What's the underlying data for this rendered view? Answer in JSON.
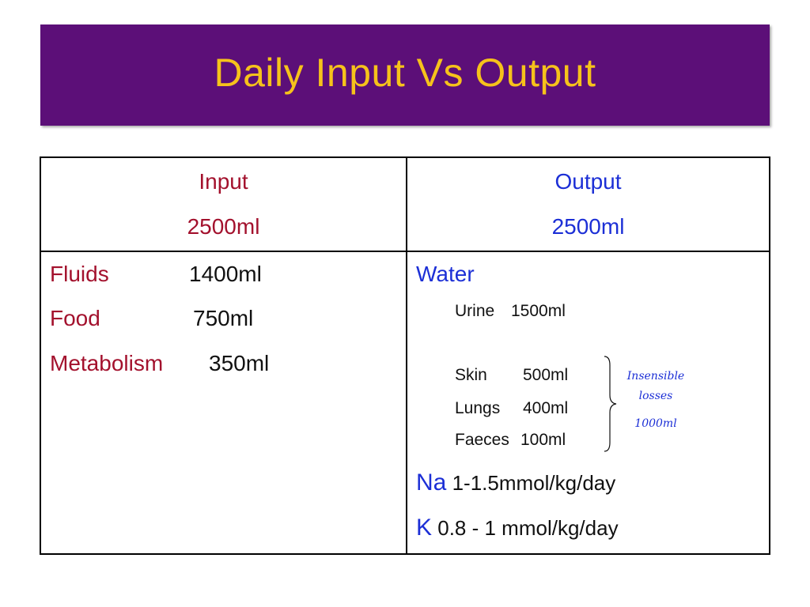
{
  "slide": {
    "title": "Daily Input Vs Output"
  },
  "table": {
    "input_header": "Input",
    "input_total": "2500ml",
    "output_header": "Output",
    "output_total": "2500ml",
    "input_items": [
      {
        "label": "Fluids",
        "value": "1400ml"
      },
      {
        "label": "Food",
        "value": "750ml"
      },
      {
        "label": "Metabolism",
        "value": "350ml"
      }
    ],
    "output_water_label": "Water",
    "output_items": [
      {
        "label": "Urine",
        "value": "1500ml"
      },
      {
        "label": "Skin",
        "value": "500ml"
      },
      {
        "label": "Lungs",
        "value": "400ml"
      },
      {
        "label": "Faeces",
        "value": "100ml"
      }
    ],
    "insensible_note_line1": "Insensible",
    "insensible_note_line2": "losses",
    "insensible_total": "1000ml",
    "sodium_symbol": "Na",
    "sodium_value": "1-1.5mmol/kg/day",
    "potassium_symbol": "K",
    "potassium_value": "0.8 - 1 mmol/kg/day"
  },
  "colors": {
    "title_bg": "#5c0f78",
    "title_text": "#f6c21b",
    "input_text": "#a3112d",
    "output_text": "#1c2fd6"
  }
}
